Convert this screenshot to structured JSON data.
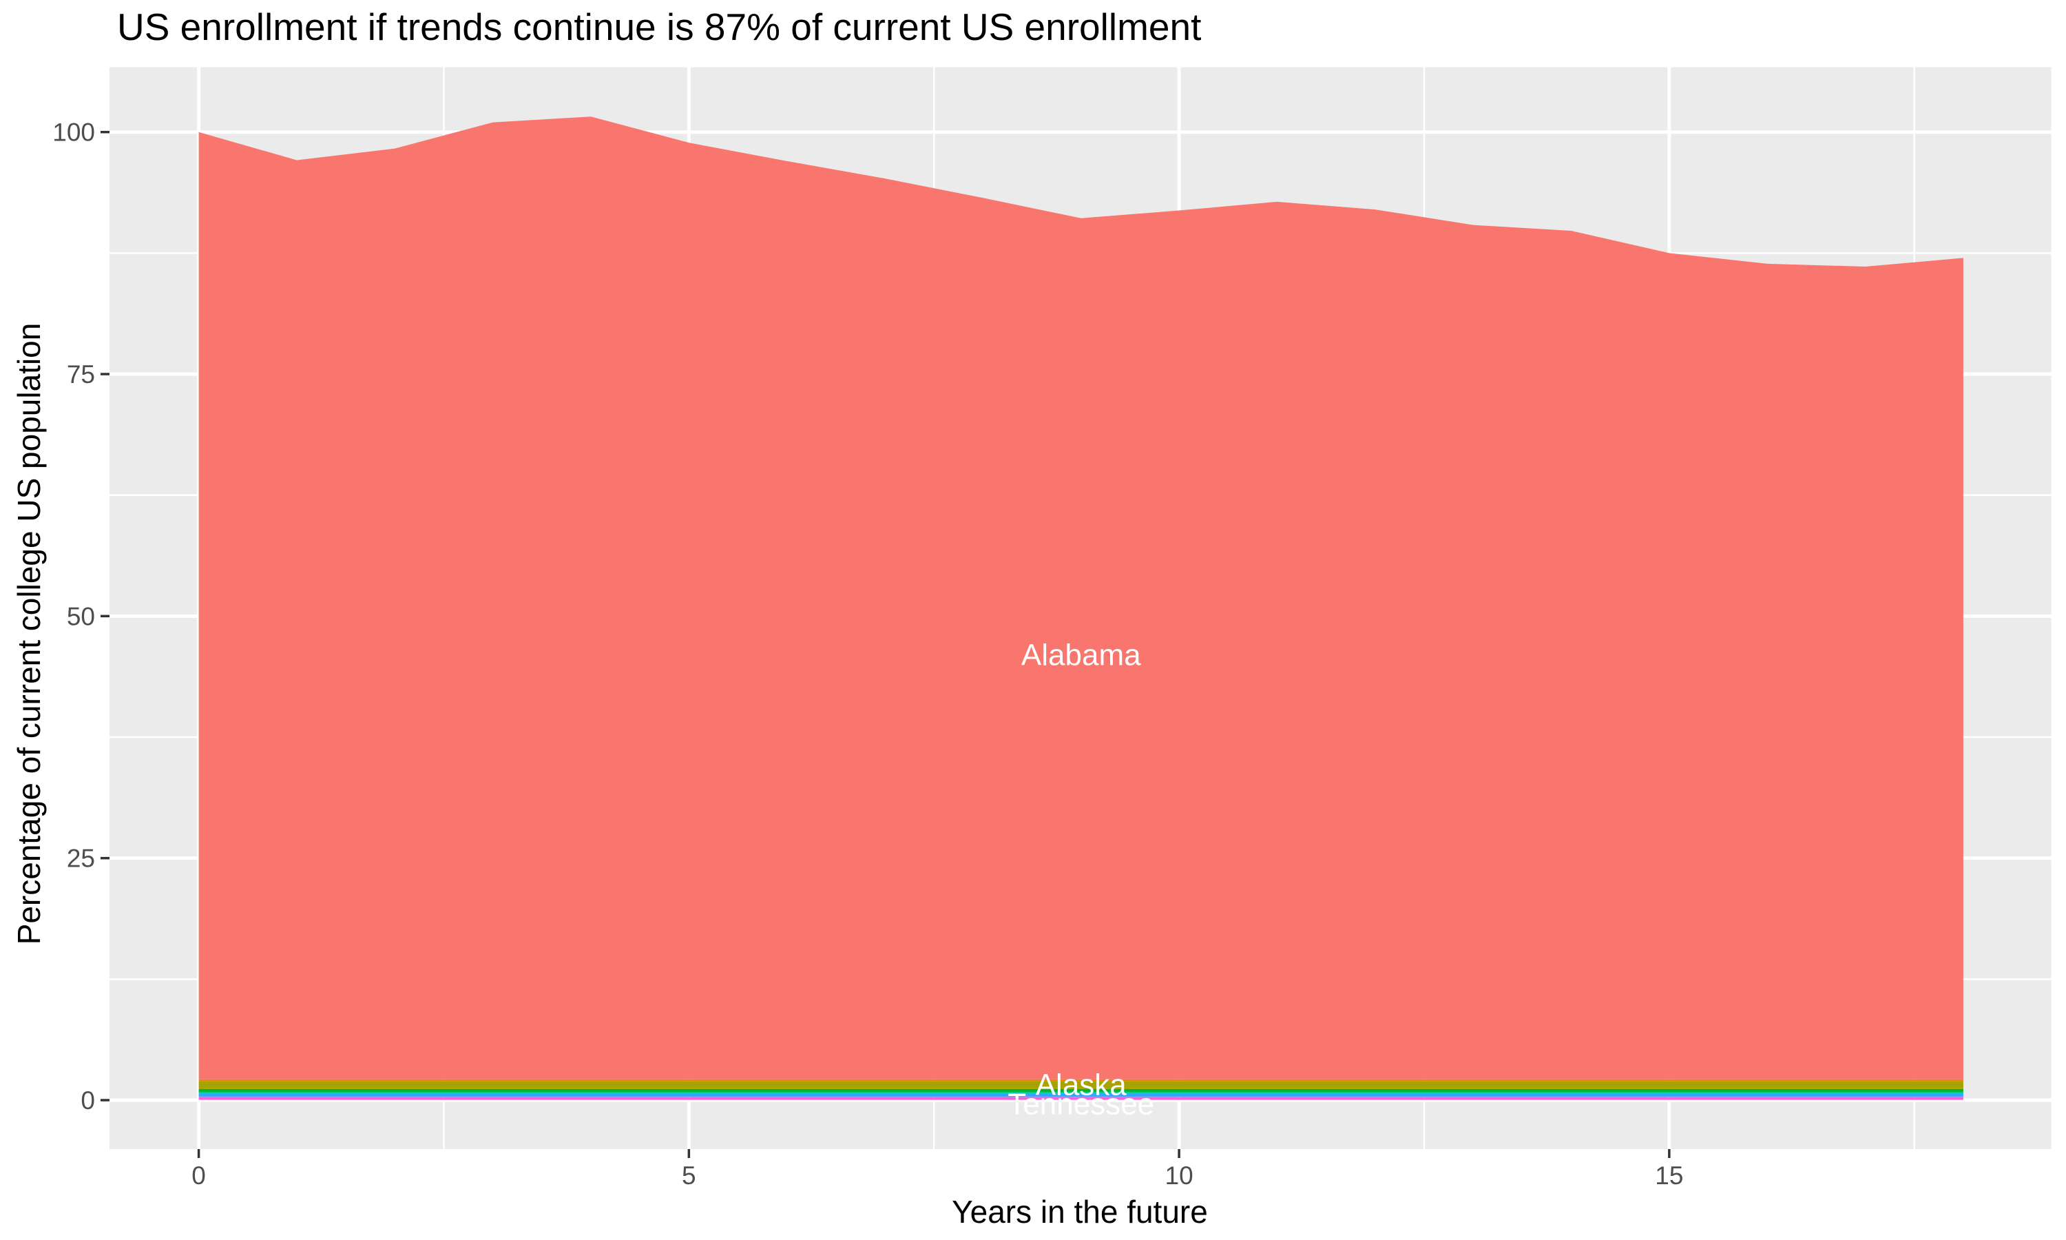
{
  "chart_data": {
    "type": "area",
    "stacked": true,
    "title": "US enrollment if trends continue is 87% of current US enrollment",
    "xlabel": "Years in the future",
    "ylabel": "Percentage of current college US population",
    "x": [
      0,
      1,
      2,
      3,
      4,
      5,
      6,
      7,
      8,
      9,
      10,
      11,
      12,
      13,
      14,
      15,
      16,
      17,
      18
    ],
    "x_ticks": [
      0,
      5,
      10,
      15
    ],
    "y_ticks": [
      0,
      25,
      50,
      75,
      100
    ],
    "x_minor_ticks": [
      2.5,
      7.5,
      12.5,
      17.5
    ],
    "y_minor_ticks": [
      12.5,
      37.5,
      62.5,
      87.5
    ],
    "xlim": [
      -0.9,
      18.9
    ],
    "ylim": [
      -5.1,
      106.7
    ],
    "grid": "on",
    "legend_position": "none",
    "colors": {
      "panel_background": "#EBEBEB",
      "gridline": "#FFFFFF",
      "tick_mark": "#333333",
      "tick_label": "#4D4D4D",
      "alabama_fill": "#F8766D"
    },
    "series": [
      {
        "name": "Alabama",
        "color": "#F8766D",
        "base": 2.15,
        "top_values": [
          100.0,
          97.1,
          98.3,
          101.0,
          101.6,
          98.9,
          97.0,
          95.2,
          93.2,
          91.1,
          91.9,
          92.8,
          92.0,
          90.4,
          89.8,
          87.5,
          86.4,
          86.1,
          87.0
        ]
      }
    ],
    "bottom_bands": [
      {
        "color": "#DE8C00",
        "top": 2.15,
        "bottom": 1.97
      },
      {
        "color": "#A8A200",
        "top": 1.97,
        "bottom": 1.27
      },
      {
        "color": "#8FAA00",
        "top": 1.27,
        "bottom": 1.14
      },
      {
        "color": "#00B53C",
        "top": 1.14,
        "bottom": 0.84
      },
      {
        "color": "#00BFA4",
        "top": 0.84,
        "bottom": 0.69
      },
      {
        "color": "#2FA7FF",
        "top": 0.69,
        "bottom": 0.36
      },
      {
        "color": "#9590FF",
        "top": 0.36,
        "bottom": 0.3
      },
      {
        "color": "#FC5FD5",
        "top": 0.3,
        "bottom": 0.07
      },
      {
        "color": "#FF9CE9",
        "top": 0.07,
        "bottom": 0.0
      }
    ],
    "annotations": [
      {
        "text": "Alabama",
        "x": 9,
        "y": 46.0
      },
      {
        "text": "Alaska",
        "x": 9,
        "y": 1.6
      },
      {
        "text": "Tennessee",
        "x": 9,
        "y": -0.4
      }
    ]
  }
}
